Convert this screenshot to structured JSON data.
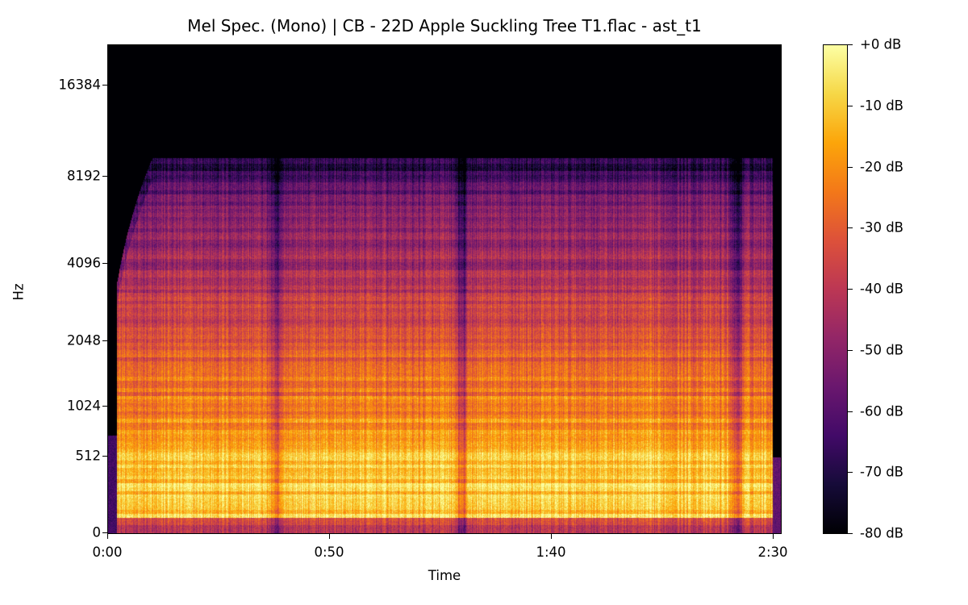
{
  "chart_data": {
    "type": "heatmap",
    "title": "Mel Spec. (Mono) | CB - 22D Apple Suckling Tree T1.flac - ast_t1",
    "xlabel": "Time",
    "ylabel": "Hz",
    "y_scale": "mel",
    "xlim_seconds": [
      0,
      152
    ],
    "ylim_hz": [
      0,
      22050
    ],
    "x_ticks": [
      {
        "label": "0:00",
        "value": 0
      },
      {
        "label": "0:50",
        "value": 50
      },
      {
        "label": "1:40",
        "value": 100
      },
      {
        "label": "2:30",
        "value": 150
      }
    ],
    "y_ticks": [
      {
        "label": "0",
        "value": 0
      },
      {
        "label": "512",
        "value": 512
      },
      {
        "label": "1024",
        "value": 1024
      },
      {
        "label": "2048",
        "value": 2048
      },
      {
        "label": "4096",
        "value": 4096
      },
      {
        "label": "8192",
        "value": 8192
      },
      {
        "label": "16384",
        "value": 16384
      }
    ],
    "colorbar": {
      "colormap": "inferno",
      "clim_db": [
        -80,
        0
      ],
      "ticks": [
        {
          "label": "+0 dB",
          "value": 0
        },
        {
          "label": "-10 dB",
          "value": -10
        },
        {
          "label": "-20 dB",
          "value": -20
        },
        {
          "label": "-30 dB",
          "value": -30
        },
        {
          "label": "-40 dB",
          "value": -40
        },
        {
          "label": "-50 dB",
          "value": -50
        },
        {
          "label": "-60 dB",
          "value": -60
        },
        {
          "label": "-70 dB",
          "value": -70
        },
        {
          "label": "-80 dB",
          "value": -80
        }
      ]
    },
    "content_summary": {
      "signal_span_seconds": [
        2,
        150
      ],
      "upper_frequency_cutoff_hz": 9500,
      "quiet_dips_seconds": [
        38,
        80,
        142
      ]
    }
  }
}
